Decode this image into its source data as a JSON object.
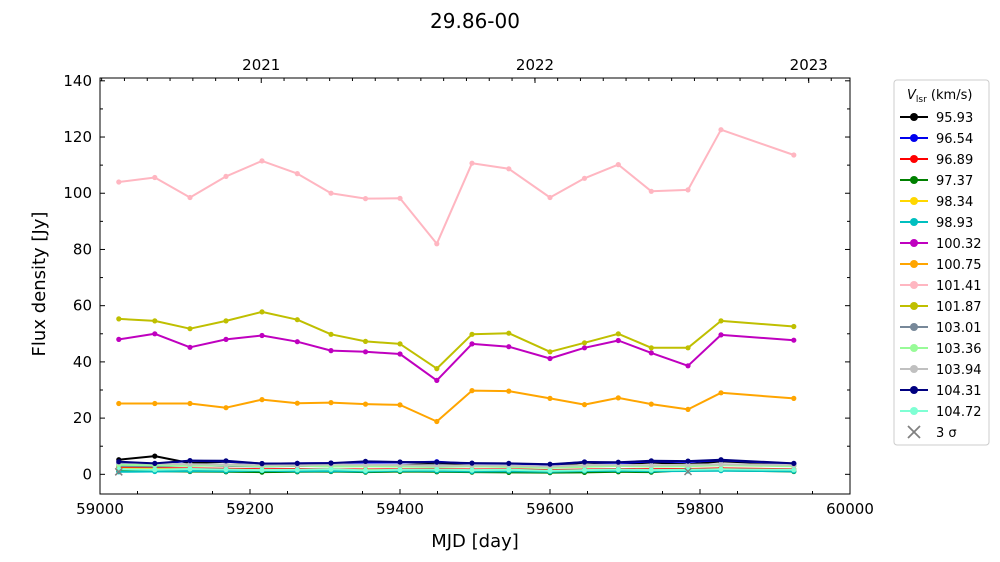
{
  "chart_data": {
    "type": "line",
    "title": "29.86-00",
    "xlabel": "MJD [day]",
    "ylabel": "Flux density [Jy]",
    "xlim": [
      59000,
      60000
    ],
    "ylim": [
      -7,
      141
    ],
    "xticks": [
      59000,
      59200,
      59400,
      59600,
      59800,
      60000
    ],
    "yticks": [
      0,
      20,
      40,
      60,
      80,
      100,
      120,
      140
    ],
    "top_axis": {
      "ticks": [
        {
          "label": "2021",
          "mjd": 59215
        },
        {
          "label": "2022",
          "mjd": 59580
        },
        {
          "label": "2023",
          "mjd": 59945
        }
      ]
    },
    "grid": false,
    "legend_title": "V_lsr (km/s)",
    "legend_position": "outside-right",
    "x": [
      59025,
      59073,
      59120,
      59168,
      59216,
      59263,
      59308,
      59354,
      59400,
      59449,
      59496,
      59545,
      59600,
      59646,
      59691,
      59735,
      59784,
      59828,
      59925
    ],
    "series": [
      {
        "name": "95.93",
        "color": "#000000",
        "values": [
          5.2,
          6.5,
          4.0,
          4.5,
          3.8,
          3.2,
          4.0,
          3.0,
          3.2,
          3.8,
          3.4,
          3.1,
          2.6,
          4.2,
          3.6,
          4.2,
          3.6,
          4.6,
          3.6
        ]
      },
      {
        "name": "96.54",
        "color": "#0000ee",
        "values": [
          3.8,
          3.6,
          4.8,
          4.6,
          3.8,
          3.9,
          4.0,
          4.2,
          4.2,
          4.5,
          3.8,
          3.8,
          3.4,
          4.4,
          4.0,
          4.6,
          4.4,
          5.0,
          3.8
        ]
      },
      {
        "name": "96.89",
        "color": "#ff0000",
        "values": [
          2.4,
          2.2,
          2.1,
          2.0,
          1.8,
          1.9,
          1.8,
          1.7,
          1.8,
          1.9,
          1.7,
          1.8,
          1.5,
          1.7,
          1.9,
          1.8,
          1.9,
          2.1,
          1.8
        ]
      },
      {
        "name": "97.37",
        "color": "#008000",
        "values": [
          1.2,
          1.1,
          1.0,
          0.9,
          0.8,
          0.9,
          1.0,
          0.8,
          1.0,
          0.9,
          0.8,
          0.7,
          0.6,
          0.7,
          0.9,
          0.8,
          1.5,
          1.4,
          1.0
        ]
      },
      {
        "name": "98.34",
        "color": "#ffd700",
        "values": [
          2.0,
          1.9,
          1.8,
          1.6,
          1.5,
          1.5,
          1.4,
          1.5,
          1.5,
          1.4,
          1.3,
          1.4,
          1.2,
          1.3,
          1.6,
          1.4,
          1.6,
          1.8,
          1.5
        ]
      },
      {
        "name": "98.93",
        "color": "#00bfbf",
        "values": [
          0.9,
          1.0,
          1.2,
          1.1,
          1.3,
          1.1,
          1.2,
          1.0,
          1.3,
          1.2,
          1.0,
          1.1,
          0.9,
          1.2,
          1.3,
          1.1,
          1.2,
          1.3,
          1.1
        ]
      },
      {
        "name": "100.32",
        "color": "#bf00bf",
        "values": [
          48.0,
          50.0,
          45.2,
          48.0,
          49.4,
          47.2,
          44.0,
          43.6,
          42.8,
          33.4,
          46.4,
          45.4,
          41.2,
          45.0,
          47.6,
          43.2,
          38.6,
          49.6,
          47.7
        ]
      },
      {
        "name": "100.75",
        "color": "#ffa500",
        "values": [
          25.2,
          25.2,
          25.2,
          23.7,
          26.6,
          25.3,
          25.5,
          25.0,
          24.7,
          18.8,
          29.8,
          29.6,
          27.0,
          24.8,
          27.2,
          25.0,
          23.1,
          29.0,
          27.0
        ]
      },
      {
        "name": "101.41",
        "color": "#ffb6c1",
        "values": [
          104.0,
          105.6,
          98.5,
          106.0,
          111.5,
          107.0,
          100.0,
          98.1,
          98.2,
          82.0,
          110.7,
          108.7,
          98.5,
          105.3,
          110.2,
          100.7,
          101.2,
          122.6,
          113.6
        ]
      },
      {
        "name": "101.87",
        "color": "#bfbf00",
        "values": [
          55.3,
          54.6,
          51.8,
          54.6,
          57.8,
          55.0,
          49.8,
          47.3,
          46.4,
          37.6,
          49.8,
          50.2,
          43.6,
          46.8,
          50.0,
          45.0,
          45.0,
          54.6,
          52.6
        ]
      },
      {
        "name": "103.01",
        "color": "#778899",
        "values": [
          3.0,
          2.8,
          3.2,
          3.0,
          2.8,
          3.0,
          2.9,
          3.2,
          3.0,
          3.4,
          2.9,
          2.8,
          2.6,
          2.9,
          3.0,
          3.0,
          3.2,
          3.5,
          3.1
        ]
      },
      {
        "name": "103.36",
        "color": "#98fb98",
        "values": [
          3.4,
          3.2,
          3.0,
          3.2,
          2.9,
          3.1,
          2.8,
          2.9,
          2.8,
          2.6,
          2.9,
          2.6,
          2.3,
          2.7,
          3.0,
          2.8,
          2.9,
          3.2,
          2.9
        ]
      },
      {
        "name": "103.94",
        "color": "#c0c0c0",
        "values": [
          4.2,
          3.8,
          3.6,
          3.5,
          3.3,
          3.2,
          3.5,
          3.4,
          3.3,
          3.0,
          3.2,
          3.1,
          2.8,
          3.3,
          3.4,
          3.2,
          3.4,
          3.6,
          3.3
        ]
      },
      {
        "name": "104.31",
        "color": "#000080",
        "values": [
          4.5,
          3.9,
          4.9,
          4.8,
          3.8,
          3.9,
          4.0,
          4.6,
          4.4,
          4.3,
          4.0,
          3.9,
          3.6,
          4.4,
          4.3,
          4.8,
          4.7,
          5.2,
          3.9
        ]
      },
      {
        "name": "104.72",
        "color": "#7fffd4",
        "values": [
          1.8,
          1.6,
          1.9,
          1.7,
          1.5,
          1.6,
          1.8,
          1.4,
          1.6,
          1.7,
          1.5,
          1.6,
          1.3,
          1.5,
          1.7,
          1.5,
          1.6,
          1.8,
          1.6
        ]
      }
    ],
    "sigma_points": [
      {
        "x": 59025,
        "y": 0.9
      },
      {
        "x": 59784,
        "y": 1.0
      }
    ],
    "sigma_label": "3 σ",
    "sigma_color": "#808080"
  }
}
